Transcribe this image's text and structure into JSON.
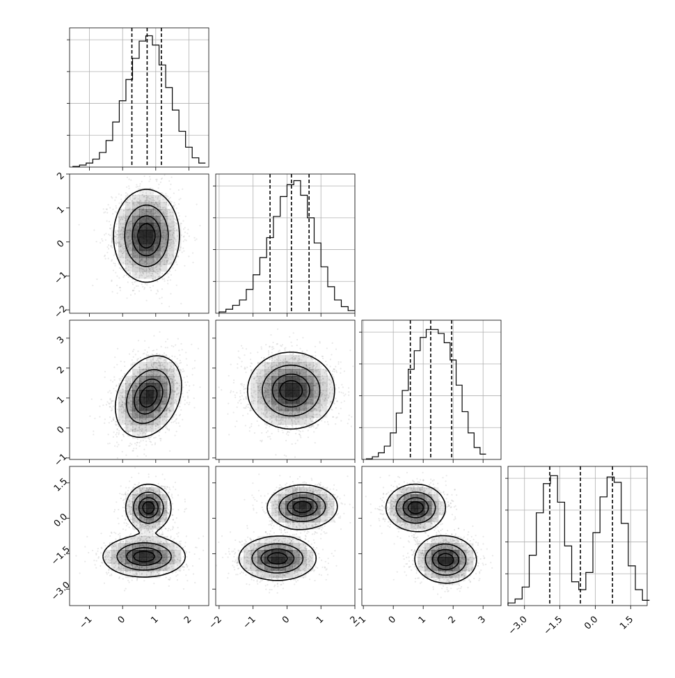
{
  "chart_data": {
    "type": "corner",
    "n_params": 4,
    "quantiles": [
      0.16,
      0.5,
      0.84
    ],
    "params": [
      {
        "index": 0,
        "range": [
          -1.6,
          2.6
        ],
        "ticks": [
          "−1",
          "0",
          "1",
          "2"
        ],
        "tick_values": [
          -1,
          0,
          1,
          2
        ],
        "quantile_values": [
          0.28,
          0.74,
          1.17
        ],
        "hist": {
          "x": [
            -1.4,
            -1.2,
            -1.0,
            -0.8,
            -0.6,
            -0.4,
            -0.2,
            0.0,
            0.2,
            0.4,
            0.6,
            0.8,
            1.0,
            1.2,
            1.4,
            1.6,
            1.8,
            2.0,
            2.2,
            2.4
          ],
          "values": [
            0.005,
            0.015,
            0.03,
            0.06,
            0.11,
            0.2,
            0.34,
            0.5,
            0.66,
            0.82,
            0.95,
            0.99,
            0.92,
            0.77,
            0.6,
            0.43,
            0.27,
            0.15,
            0.07,
            0.03
          ]
        }
      },
      {
        "index": 1,
        "range": [
          -2.1,
          2.0
        ],
        "ticks": [
          "−2",
          "−1",
          "0",
          "1",
          "2"
        ],
        "tick_values": [
          -2,
          -1,
          0,
          1,
          2
        ],
        "quantile_values": [
          -0.5,
          0.13,
          0.65
        ],
        "hist": {
          "x": [
            -1.9,
            -1.7,
            -1.5,
            -1.3,
            -1.1,
            -0.9,
            -0.7,
            -0.5,
            -0.3,
            -0.1,
            0.1,
            0.3,
            0.5,
            0.7,
            0.9,
            1.1,
            1.3,
            1.5,
            1.7,
            1.9
          ],
          "values": [
            0.01,
            0.03,
            0.06,
            0.1,
            0.18,
            0.29,
            0.42,
            0.57,
            0.73,
            0.88,
            0.97,
            1.0,
            0.89,
            0.72,
            0.53,
            0.35,
            0.2,
            0.1,
            0.05,
            0.02
          ]
        }
      },
      {
        "index": 2,
        "range": [
          -1.05,
          3.6
        ],
        "ticks": [
          "−1",
          "0",
          "1",
          "2",
          "3"
        ],
        "tick_values": [
          -1,
          0,
          1,
          2,
          3
        ],
        "quantile_values": [
          0.57,
          1.25,
          1.95
        ],
        "hist": {
          "x": [
            -0.8,
            -0.6,
            -0.4,
            -0.2,
            0.0,
            0.2,
            0.4,
            0.6,
            0.8,
            1.0,
            1.2,
            1.4,
            1.6,
            1.8,
            2.0,
            2.2,
            2.4,
            2.6,
            2.8,
            3.0
          ],
          "values": [
            0.005,
            0.02,
            0.05,
            0.1,
            0.2,
            0.35,
            0.52,
            0.68,
            0.82,
            0.92,
            0.98,
            0.98,
            0.95,
            0.88,
            0.75,
            0.56,
            0.36,
            0.2,
            0.09,
            0.04
          ]
        }
      },
      {
        "index": 3,
        "range": [
          -3.7,
          2.2
        ],
        "ticks": [
          "−3.0",
          "−1.5",
          "0.0",
          "1.5"
        ],
        "tick_values": [
          -3.0,
          -1.5,
          0.0,
          1.5
        ],
        "quantile_values": [
          -1.93,
          -0.63,
          0.73
        ],
        "hist": {
          "x": [
            -3.55,
            -3.25,
            -2.95,
            -2.65,
            -2.35,
            -2.05,
            -1.75,
            -1.45,
            -1.15,
            -0.85,
            -0.55,
            -0.25,
            0.05,
            0.35,
            0.65,
            0.95,
            1.25,
            1.55,
            1.85,
            2.15
          ],
          "values": [
            0.02,
            0.05,
            0.14,
            0.38,
            0.7,
            0.92,
            0.98,
            0.78,
            0.45,
            0.18,
            0.12,
            0.25,
            0.55,
            0.82,
            0.97,
            0.93,
            0.62,
            0.3,
            0.12,
            0.04
          ]
        }
      }
    ],
    "pairs": [
      {
        "x_param": 0,
        "y_param": 1,
        "blobs": [
          {
            "mean": [
              0.72,
              0.18
            ],
            "sd": [
              0.48,
              0.66
            ],
            "rot": 0.0
          }
        ]
      },
      {
        "x_param": 0,
        "y_param": 2,
        "blobs": [
          {
            "mean": [
              0.78,
              1.05
            ],
            "sd": [
              0.45,
              0.68
            ],
            "rot": -0.35
          }
        ]
      },
      {
        "x_param": 1,
        "y_param": 2,
        "blobs": [
          {
            "mean": [
              0.12,
              1.25
            ],
            "sd": [
              0.62,
              0.62
            ],
            "rot": -0.7
          }
        ]
      },
      {
        "x_param": 0,
        "y_param": 3,
        "blobs": [
          {
            "mean": [
              0.78,
              0.45
            ],
            "sd": [
              0.33,
              0.48
            ],
            "rot": 0.0
          },
          {
            "mean": [
              0.65,
              -1.62
            ],
            "sd": [
              0.6,
              0.42
            ],
            "rot": 0.0
          }
        ]
      },
      {
        "x_param": 1,
        "y_param": 3,
        "blobs": [
          {
            "mean": [
              0.45,
              0.48
            ],
            "sd": [
              0.5,
              0.45
            ],
            "rot": 0.1
          },
          {
            "mean": [
              -0.28,
              -1.7
            ],
            "sd": [
              0.55,
              0.45
            ],
            "rot": 0.0
          }
        ]
      },
      {
        "x_param": 2,
        "y_param": 3,
        "blobs": [
          {
            "mean": [
              0.75,
              0.45
            ],
            "sd": [
              0.48,
              0.48
            ],
            "rot": 0.15
          },
          {
            "mean": [
              1.75,
              -1.75
            ],
            "sd": [
              0.5,
              0.48
            ],
            "rot": -0.35
          }
        ]
      }
    ],
    "contour_levels": [
      0.118,
      0.393,
      0.675,
      0.865
    ],
    "colors": {
      "hist": "#000000",
      "points": "#808080",
      "density": "#000000",
      "grid": "#b0b0b0"
    }
  }
}
